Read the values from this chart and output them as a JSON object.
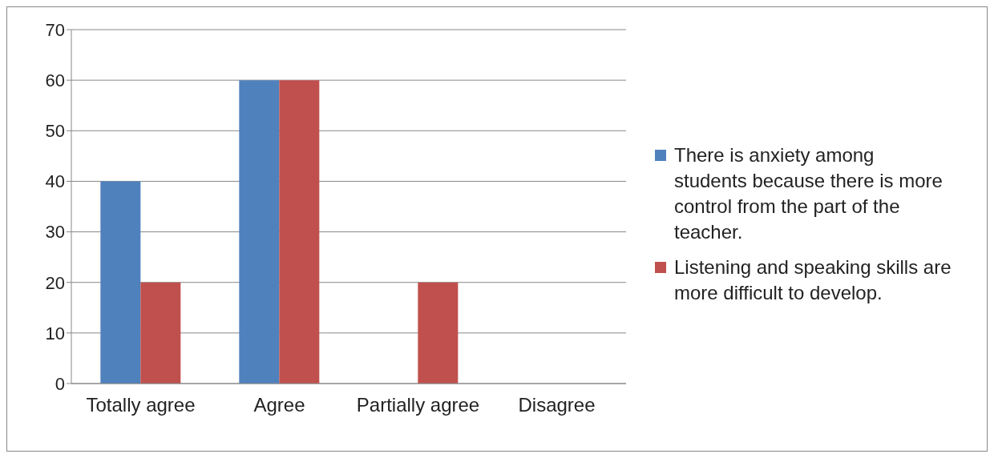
{
  "chart_data": {
    "type": "bar",
    "categories": [
      "Totally agree",
      "Agree",
      "Partially agree",
      "Disagree"
    ],
    "series": [
      {
        "name": "There is anxiety among students because there is more control from the part of the teacher.",
        "color": "#4f81bd",
        "values": [
          40,
          60,
          0,
          0
        ]
      },
      {
        "name": "Listening and speaking skills are more difficult to develop.",
        "color": "#c0504d",
        "values": [
          20,
          60,
          20,
          0
        ]
      }
    ],
    "ylim": [
      0,
      70
    ],
    "yticks": [
      0,
      10,
      20,
      30,
      40,
      50,
      60,
      70
    ],
    "grid": "y",
    "legend": "right"
  }
}
